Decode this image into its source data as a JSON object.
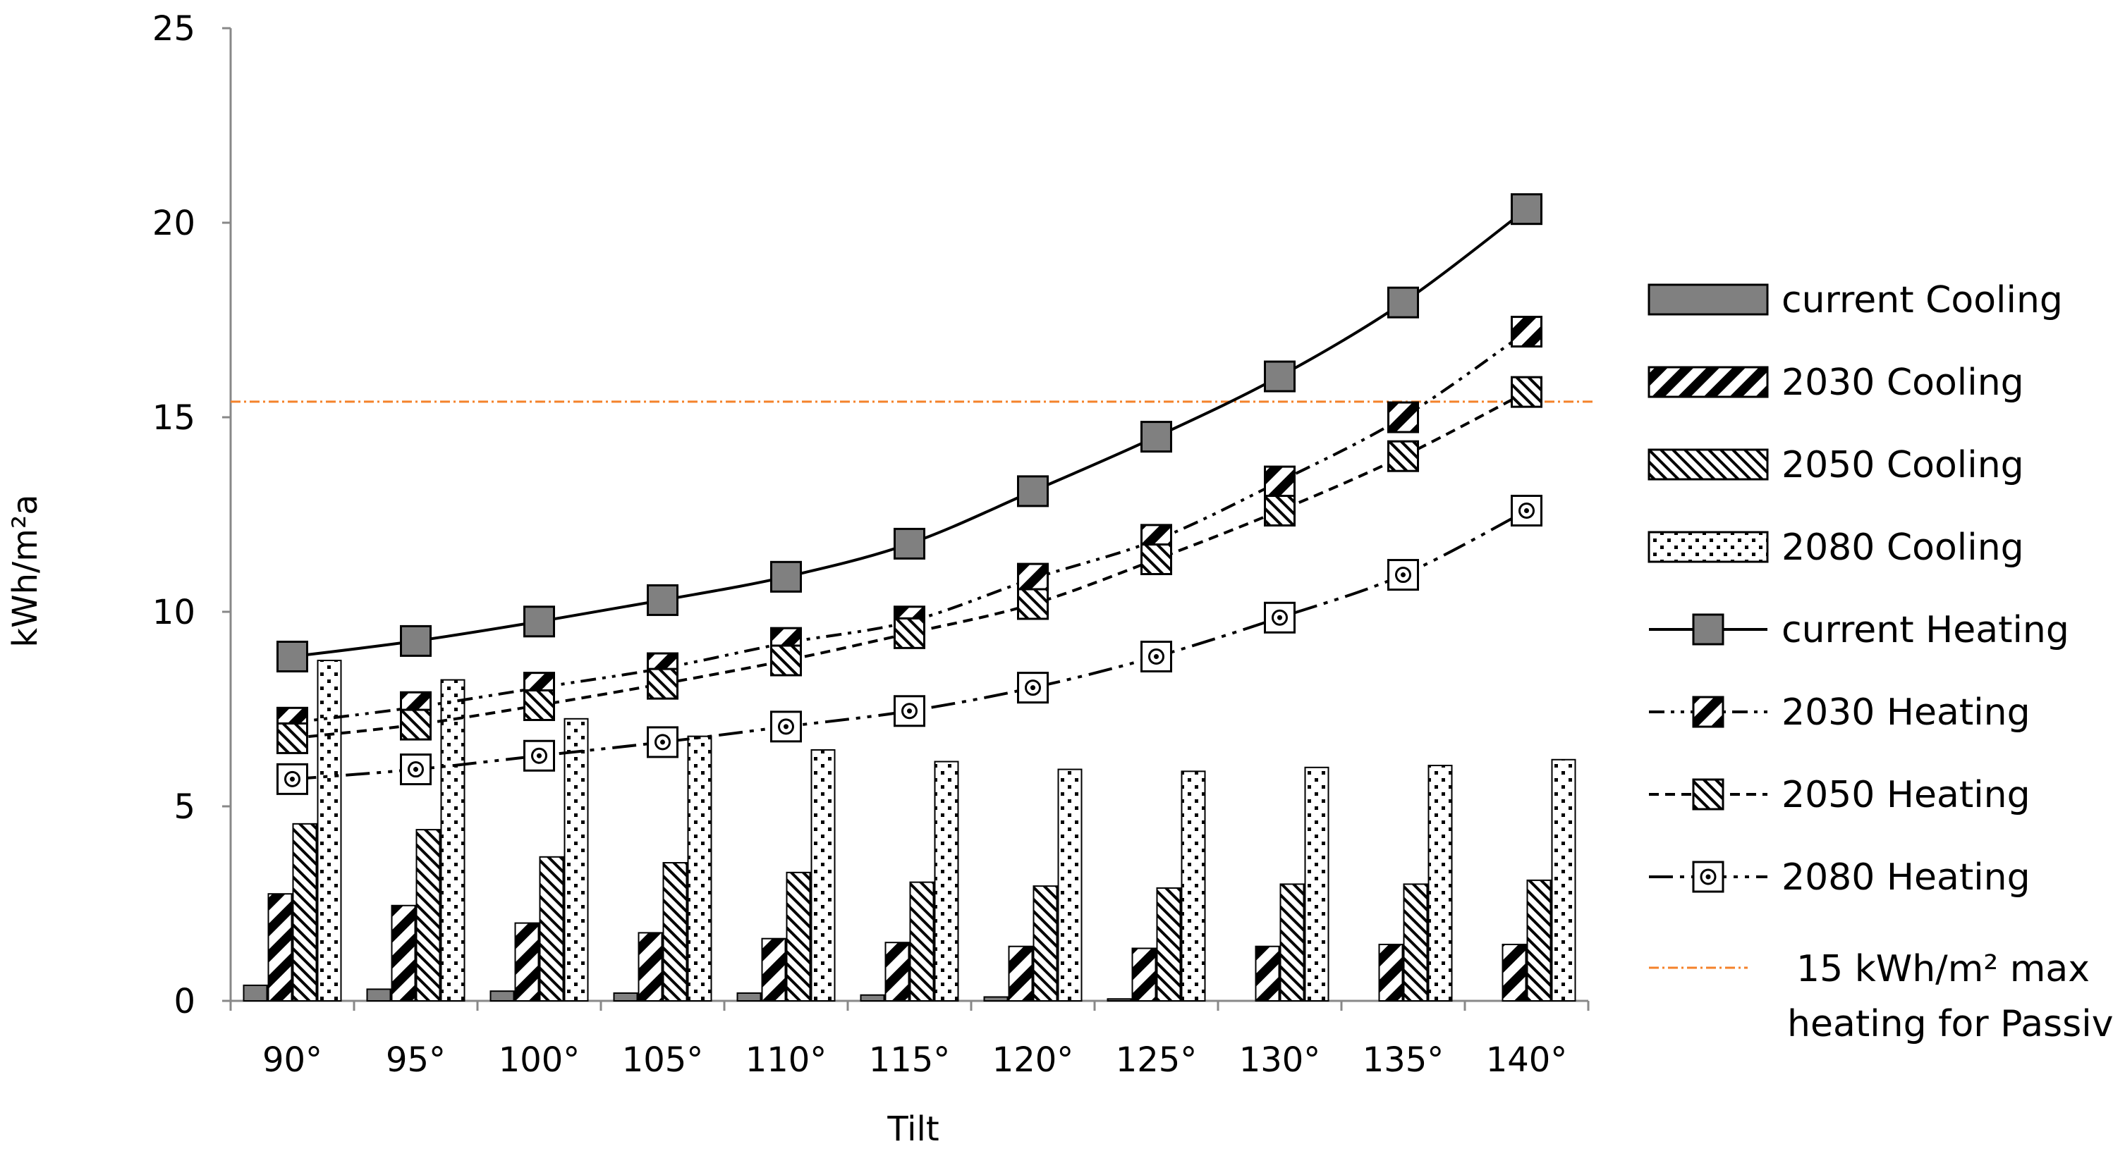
{
  "chart_data": {
    "type": "bar",
    "title": "",
    "xlabel": "Tilt",
    "ylabel": "kWh/m²a",
    "ylim": [
      0,
      25
    ],
    "yticks": [
      0,
      5,
      10,
      15,
      20,
      25
    ],
    "grid": false,
    "legend_position": "right",
    "categories": [
      "90°",
      "95°",
      "100°",
      "105°",
      "110°",
      "115°",
      "120°",
      "125°",
      "130°",
      "135°",
      "140°"
    ],
    "bar_series": [
      {
        "name": "current Cooling",
        "pattern": "solid-gray",
        "values": [
          0.4,
          0.3,
          0.25,
          0.2,
          0.2,
          0.15,
          0.1,
          0.05,
          0.0,
          0.0,
          0.0
        ]
      },
      {
        "name": "2030 Cooling",
        "pattern": "wide-diagonal",
        "values": [
          2.75,
          2.45,
          2.0,
          1.75,
          1.6,
          1.5,
          1.4,
          1.35,
          1.4,
          1.45,
          1.45
        ]
      },
      {
        "name": "2050 Cooling",
        "pattern": "narrow-diagonal",
        "values": [
          4.55,
          4.4,
          3.7,
          3.55,
          3.3,
          3.05,
          2.95,
          2.9,
          3.0,
          3.0,
          3.1
        ]
      },
      {
        "name": "2080 Cooling",
        "pattern": "dotted",
        "values": [
          8.75,
          8.25,
          7.25,
          6.8,
          6.45,
          6.15,
          5.95,
          5.9,
          6.0,
          6.05,
          6.2
        ]
      }
    ],
    "line_series": [
      {
        "name": "current Heating",
        "marker": "solid-gray",
        "dash": "solid",
        "values": [
          8.85,
          9.25,
          9.75,
          10.3,
          10.9,
          11.75,
          13.1,
          14.5,
          16.05,
          17.95,
          20.35
        ]
      },
      {
        "name": "2030 Heating",
        "marker": "wide-diagonal",
        "dash": "dash-dot-dot",
        "values": [
          7.15,
          7.55,
          8.05,
          8.55,
          9.2,
          9.75,
          10.85,
          11.85,
          13.35,
          15.0,
          17.2
        ]
      },
      {
        "name": "2050 Heating",
        "marker": "narrow-diagonal",
        "dash": "dashed",
        "values": [
          6.75,
          7.1,
          7.6,
          8.15,
          8.75,
          9.45,
          10.2,
          11.35,
          12.6,
          14.0,
          15.65
        ]
      },
      {
        "name": "2080 Heating",
        "marker": "dot-center",
        "dash": "long-dash-dot-dot",
        "values": [
          5.7,
          5.95,
          6.3,
          6.65,
          7.05,
          7.45,
          8.05,
          8.85,
          9.85,
          10.95,
          12.6
        ]
      }
    ],
    "reference_line": {
      "name_line1": "15 kWh/m²  max",
      "name_line2": "heating for Passivhaus",
      "value": 15.4,
      "color": "#F4822A"
    },
    "colors": {
      "axis": "#888888",
      "bar_fill_solid": "#808080",
      "line": "#000000",
      "reference": "#F4822A"
    }
  }
}
